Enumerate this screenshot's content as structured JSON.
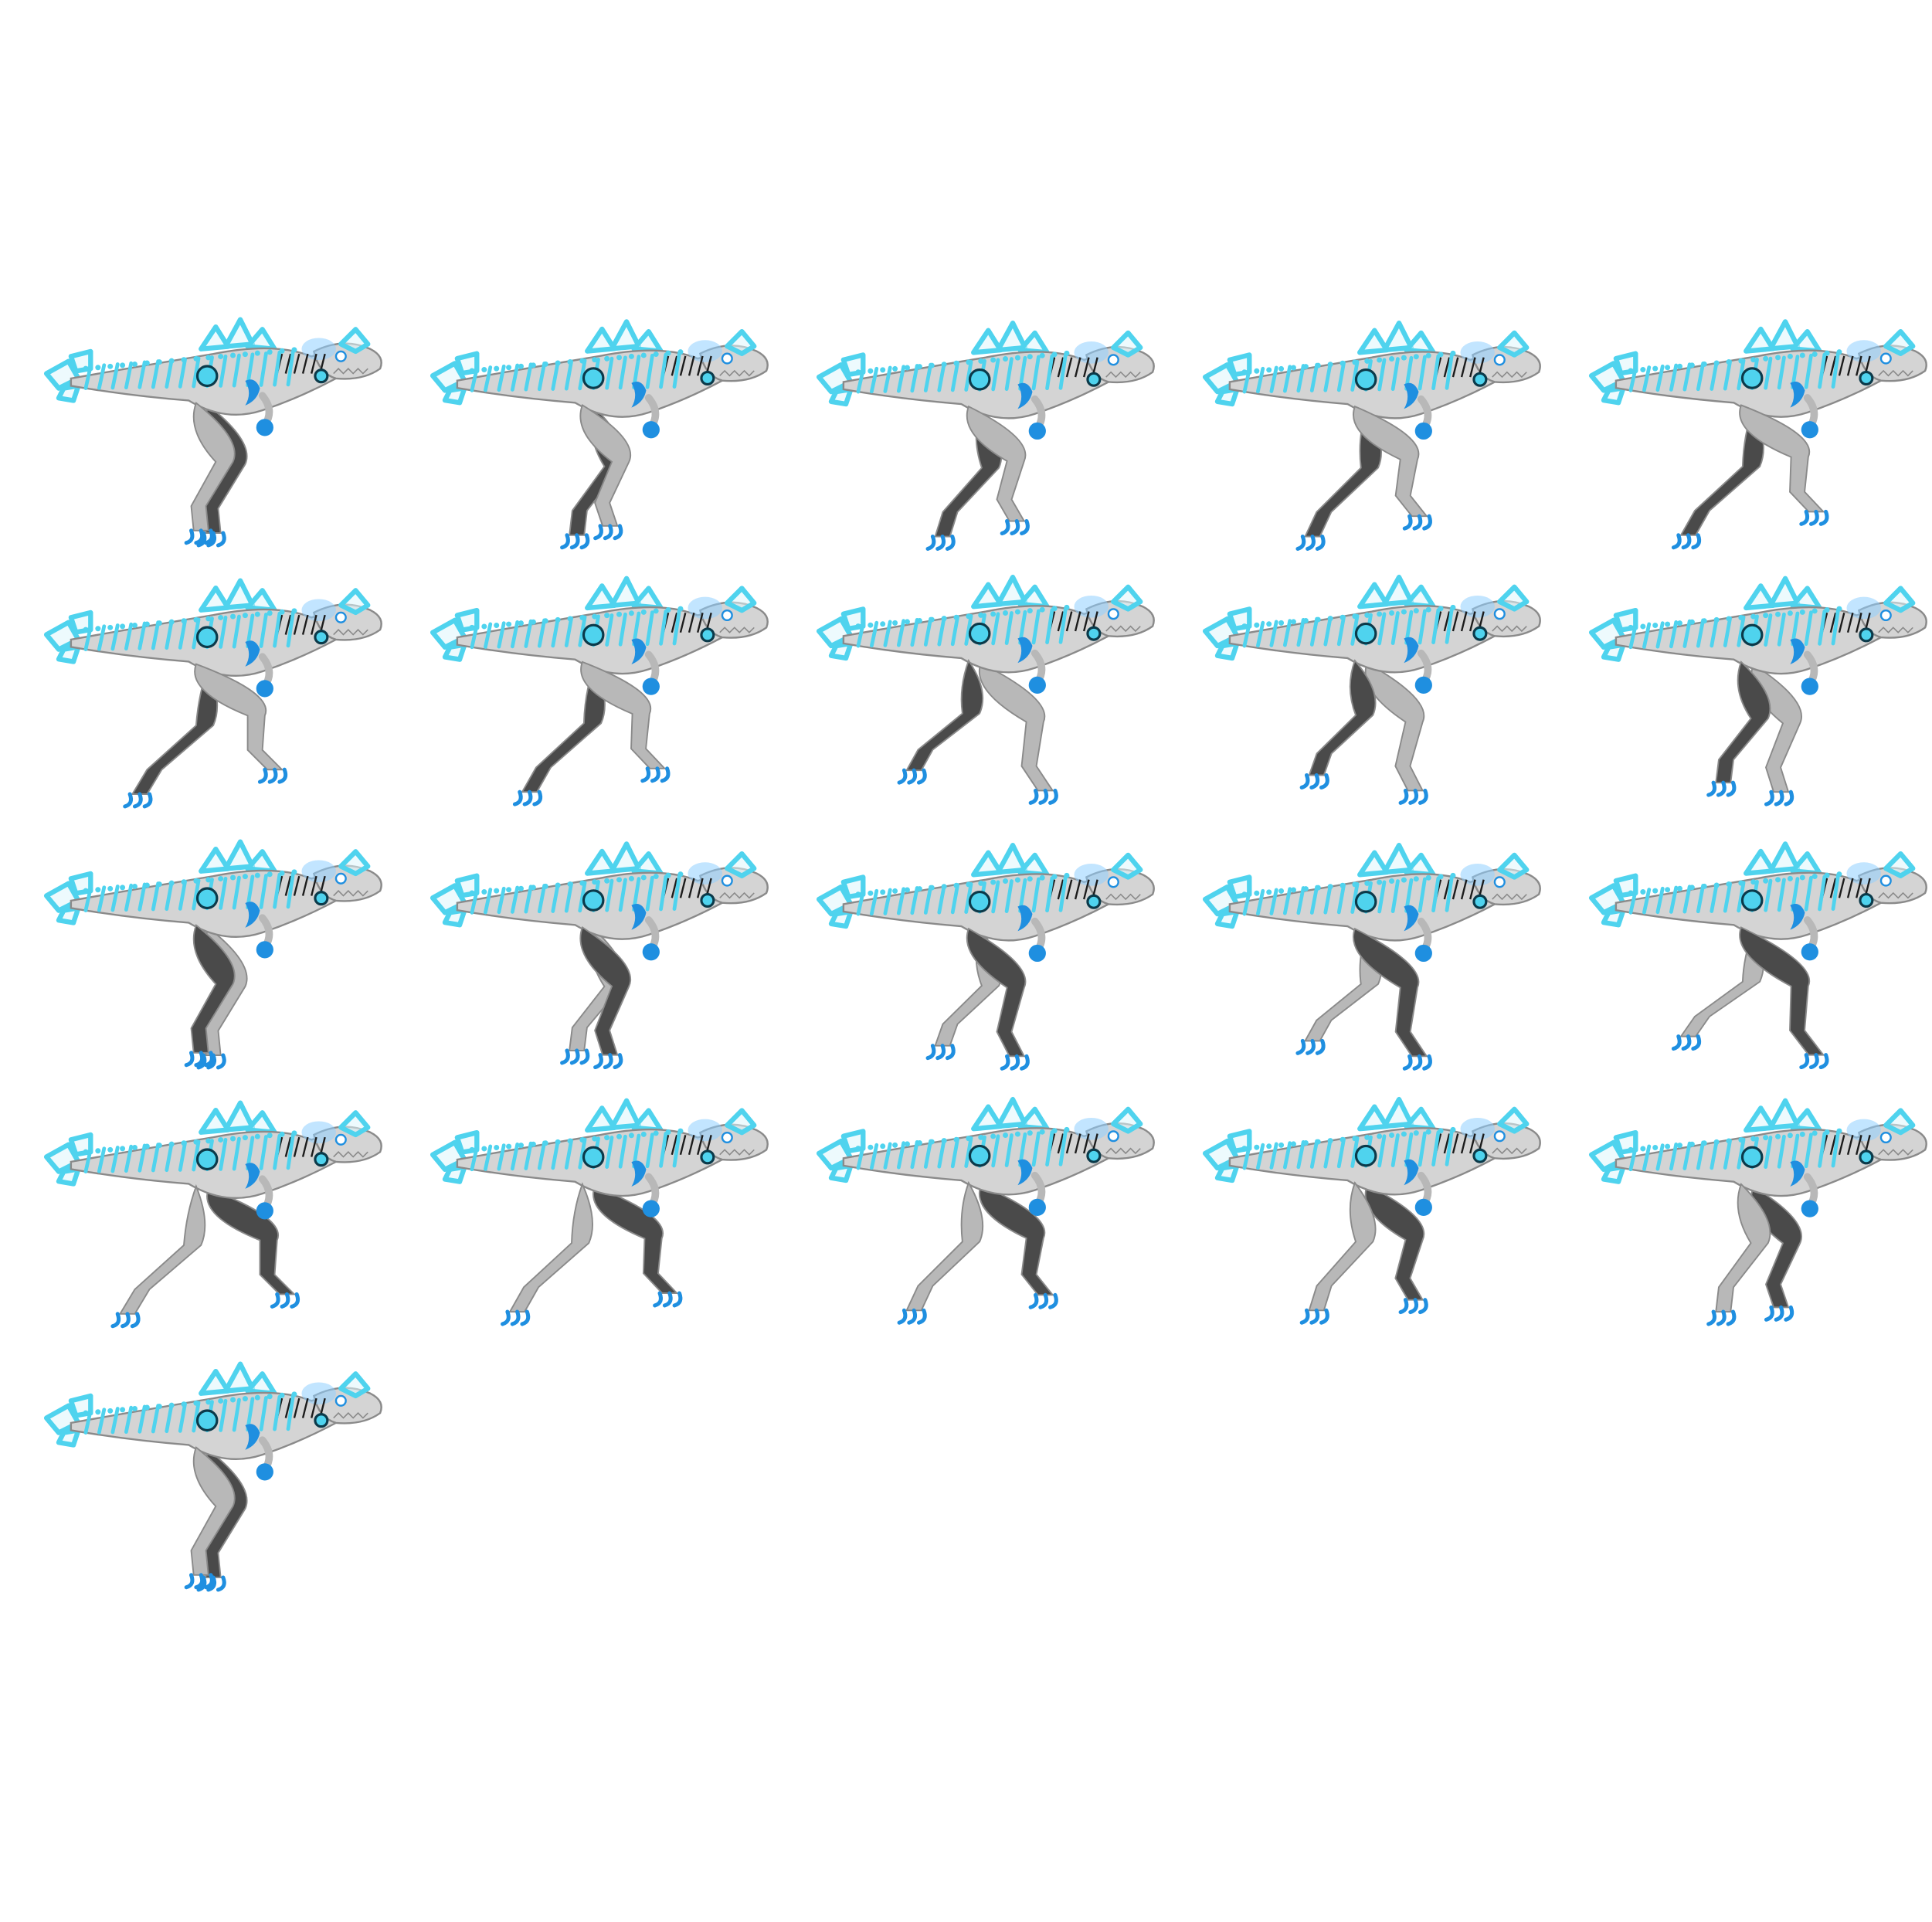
{
  "sprite_sheet": {
    "columns": 5,
    "frame_count": 21,
    "background": "#ffffff",
    "colors": {
      "body": "#d4d4d4",
      "body_shade": "#b8b8b8",
      "body_outline": "#8a8a8a",
      "crystal": "#4fd3ee",
      "crystal_fill": "#dff6fc",
      "crystal_deep": "#1f8fe0",
      "dark_leg": "#4a4a4a",
      "dark_stripe": "#1c1c1c",
      "glow": "#8fd0ff"
    },
    "frames": [
      {
        "near_leg": "light",
        "phase": 0.0
      },
      {
        "near_leg": "light",
        "phase": 0.05
      },
      {
        "near_leg": "light",
        "phase": 0.1
      },
      {
        "near_leg": "light",
        "phase": 0.15
      },
      {
        "near_leg": "light",
        "phase": 0.2
      },
      {
        "near_leg": "light",
        "phase": 0.25
      },
      {
        "near_leg": "light",
        "phase": 0.3
      },
      {
        "near_leg": "dark",
        "phase": 0.35
      },
      {
        "near_leg": "dark",
        "phase": 0.4
      },
      {
        "near_leg": "dark",
        "phase": 0.45
      },
      {
        "near_leg": "dark",
        "phase": 0.5
      },
      {
        "near_leg": "dark",
        "phase": 0.55
      },
      {
        "near_leg": "dark",
        "phase": 0.6
      },
      {
        "near_leg": "dark",
        "phase": 0.65
      },
      {
        "near_leg": "dark",
        "phase": 0.7
      },
      {
        "near_leg": "light",
        "phase": 0.75
      },
      {
        "near_leg": "light",
        "phase": 0.8
      },
      {
        "near_leg": "light",
        "phase": 0.85
      },
      {
        "near_leg": "light",
        "phase": 0.9
      },
      {
        "near_leg": "light",
        "phase": 0.95
      },
      {
        "near_leg": "light",
        "phase": 1.0
      }
    ]
  }
}
